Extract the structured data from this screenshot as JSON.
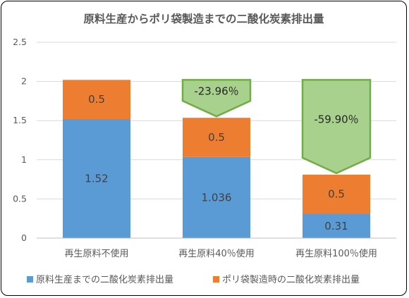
{
  "chart_data": {
    "type": "bar",
    "stacked": true,
    "title": "原料生産からポリ袋製造までの二酸化炭素排出量",
    "categories": [
      "再生原料不使用",
      "再生原料40％使用",
      "再生原料100％使用"
    ],
    "series": [
      {
        "name": "原料生産までの二酸化炭素排出量",
        "color": "#5B9BD5",
        "values": [
          1.52,
          1.036,
          0.31
        ],
        "labels": [
          "1.52",
          "1.036",
          "0.31"
        ]
      },
      {
        "name": "ポリ袋製造時の二酸化炭素排出量",
        "color": "#ED7D31",
        "values": [
          0.5,
          0.5,
          0.5
        ],
        "labels": [
          "0.5",
          "0.5",
          "0.5"
        ]
      }
    ],
    "ylim": [
      0,
      2.5
    ],
    "yticks": [
      "0",
      "0.5",
      "1",
      "1.5",
      "2",
      "2.5"
    ],
    "grid": true,
    "legend_position": "bottom",
    "callouts": [
      {
        "category": "再生原料40％使用",
        "text": "-23.96％",
        "color": "#A9D18E",
        "border": "#70AD47"
      },
      {
        "category": "再生原料100％使用",
        "text": "-59.90％",
        "color": "#A9D18E",
        "border": "#70AD47"
      }
    ]
  }
}
